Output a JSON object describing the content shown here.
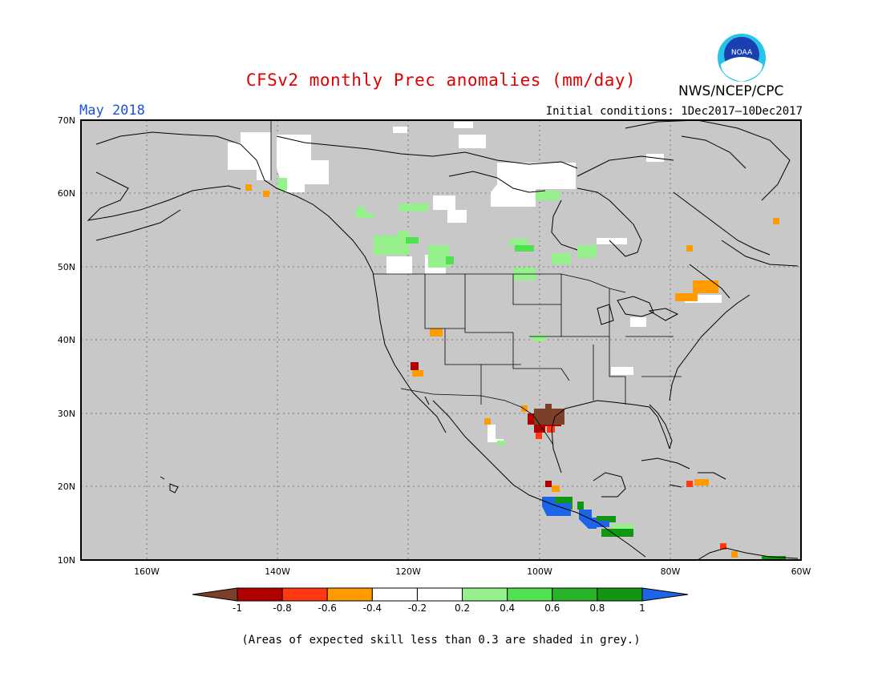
{
  "header": {
    "title": "CFSv2 monthly Prec anomalies (mm/day)",
    "period": "May 2018",
    "initial_conditions": "Initial conditions: 1Dec2017—10Dec2017",
    "agency": "NWS/NCEP/CPC",
    "logo_text": "NOAA"
  },
  "map": {
    "region": "North America",
    "lat_labels": [
      "70N",
      "60N",
      "50N",
      "40N",
      "30N",
      "20N",
      "10N"
    ],
    "lon_labels": [
      "160W",
      "140W",
      "120W",
      "100W",
      "80W",
      "60W"
    ],
    "background_color": "#c8c8c8",
    "land_border_color": "#000000"
  },
  "colorbar": {
    "tick_labels": [
      "-1",
      "-0.8",
      "-0.6",
      "-0.4",
      "-0.2",
      "0.2",
      "0.4",
      "0.6",
      "0.8",
      "1"
    ],
    "colors": [
      "#7b3f2a",
      "#b00000",
      "#ff3a10",
      "#ff9a00",
      "#ffffff",
      "#96f08c",
      "#50e050",
      "#28b428",
      "#109610",
      "#1e64e6"
    ]
  },
  "footnote": "(Areas of expected skill less than 0.3 are shaded in grey.)"
}
